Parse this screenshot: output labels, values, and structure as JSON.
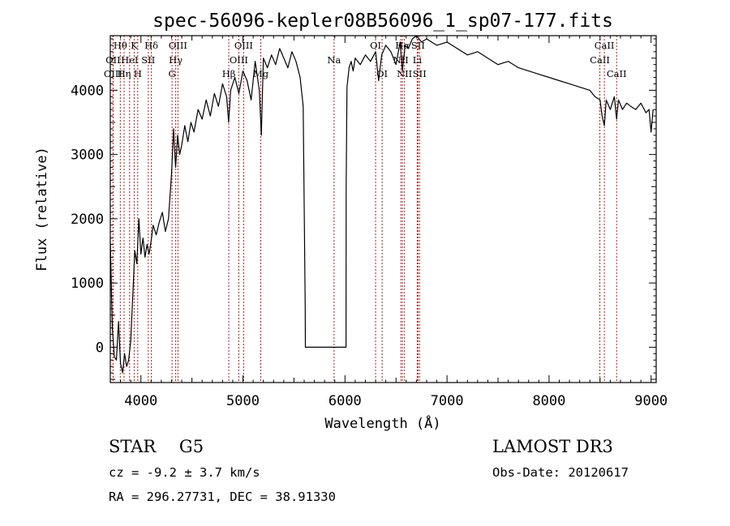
{
  "chart_data": {
    "type": "line",
    "title": "spec-56096-kepler08B56096_1_sp07-177.fits",
    "xlabel": "Wavelength (Å)",
    "ylabel": "Flux (relative)",
    "xlim": [
      3700,
      9050
    ],
    "ylim": [
      -550,
      4850
    ],
    "xticks": [
      4000,
      5000,
      6000,
      7000,
      8000,
      9000
    ],
    "yticks": [
      0,
      1000,
      2000,
      3000,
      4000
    ],
    "grid": false,
    "legend": "none",
    "line_color": "#000000",
    "marker_color": "#b22222",
    "series": [
      {
        "x": [
          3700,
          3720,
          3740,
          3760,
          3780,
          3800,
          3820,
          3840,
          3860,
          3880,
          3900,
          3920,
          3940,
          3960,
          3980,
          4000,
          4020,
          4040,
          4060,
          4080,
          4100,
          4120,
          4150,
          4180,
          4210,
          4240,
          4270,
          4300,
          4320,
          4340,
          4360,
          4380,
          4400,
          4430,
          4460,
          4490,
          4520,
          4560,
          4600,
          4640,
          4680,
          4720,
          4760,
          4800,
          4840,
          4860,
          4880,
          4920,
          4960,
          5000,
          5040,
          5080,
          5120,
          5160,
          5180,
          5200,
          5240,
          5280,
          5320,
          5360,
          5400,
          5440,
          5480,
          5520,
          5560,
          5590,
          5610,
          5612,
          5640,
          5700,
          5800,
          5900,
          6000,
          6010,
          6012,
          6020,
          6040,
          6060,
          6080,
          6100,
          6150,
          6200,
          6250,
          6300,
          6330,
          6360,
          6400,
          6450,
          6500,
          6540,
          6563,
          6590,
          6620,
          6660,
          6700,
          6750,
          6800,
          6900,
          7000,
          7100,
          7200,
          7300,
          7400,
          7500,
          7600,
          7700,
          7800,
          7900,
          8000,
          8100,
          8200,
          8300,
          8400,
          8450,
          8500,
          8520,
          8542,
          8560,
          8600,
          8640,
          8662,
          8680,
          8720,
          8760,
          8800,
          8850,
          8900,
          8950,
          8980,
          9000,
          9020
        ],
        "y": [
          1650,
          300,
          -150,
          -200,
          400,
          -250,
          -400,
          -100,
          -300,
          -200,
          100,
          800,
          1500,
          1300,
          2000,
          1450,
          1700,
          1400,
          1600,
          1450,
          1650,
          1900,
          1750,
          1950,
          2100,
          1800,
          2000,
          2700,
          3400,
          2800,
          3300,
          3000,
          3150,
          3450,
          3200,
          3500,
          3350,
          3700,
          3550,
          3850,
          3600,
          3950,
          3750,
          4100,
          3900,
          3500,
          4000,
          4200,
          3950,
          4300,
          4150,
          3850,
          4450,
          4000,
          3300,
          4500,
          4350,
          4550,
          4400,
          4650,
          4500,
          4350,
          4600,
          4450,
          4200,
          3750,
          600,
          0,
          0,
          0,
          0,
          0,
          0,
          0,
          2550,
          4050,
          4350,
          4450,
          4300,
          4500,
          4400,
          4550,
          4450,
          4600,
          4150,
          4550,
          4700,
          4600,
          4400,
          4750,
          4300,
          4700,
          4650,
          4800,
          4850,
          4750,
          4800,
          4700,
          4750,
          4650,
          4550,
          4600,
          4500,
          4400,
          4450,
          4350,
          4300,
          4250,
          4200,
          4150,
          4100,
          4050,
          4000,
          3900,
          3850,
          3600,
          3450,
          3850,
          3700,
          3900,
          3550,
          3850,
          3700,
          3800,
          3750,
          3700,
          3800,
          3650,
          3700,
          3350,
          3700
        ]
      }
    ],
    "lines": [
      {
        "name": "Hθ",
        "x": 3798,
        "row": 0
      },
      {
        "name": "OII",
        "x": 3727,
        "row": 1
      },
      {
        "name": "OIII",
        "x": 3727,
        "row": 2
      },
      {
        "name": "K",
        "x": 3934,
        "row": 0
      },
      {
        "name": "HeI",
        "x": 3889,
        "row": 1
      },
      {
        "name": "Hη",
        "x": 3835,
        "row": 2
      },
      {
        "name": "Hδ",
        "x": 4102,
        "row": 0
      },
      {
        "name": "SII",
        "x": 4072,
        "row": 1
      },
      {
        "name": "H",
        "x": 3969,
        "row": 2
      },
      {
        "name": "OIII",
        "x": 4363,
        "row": 0
      },
      {
        "name": "Hγ",
        "x": 4341,
        "row": 1
      },
      {
        "name": "G",
        "x": 4305,
        "row": 2
      },
      {
        "name": "OIII",
        "x": 5007,
        "row": 0
      },
      {
        "name": "OIII",
        "x": 4959,
        "row": 1
      },
      {
        "name": "Hβ",
        "x": 4861,
        "row": 2
      },
      {
        "name": "Mg",
        "x": 5175,
        "row": 2
      },
      {
        "name": "Na",
        "x": 5893,
        "row": 1
      },
      {
        "name": "OI",
        "x": 6300,
        "row": 0
      },
      {
        "name": "OI",
        "x": 6364,
        "row": 2
      },
      {
        "name": "Hα",
        "x": 6563,
        "row": 0
      },
      {
        "name": "SII",
        "x": 6716,
        "row": 0
      },
      {
        "name": "NII",
        "x": 6548,
        "row": 1
      },
      {
        "name": "Li",
        "x": 6708,
        "row": 1
      },
      {
        "name": "NII",
        "x": 6583,
        "row": 2
      },
      {
        "name": "SII",
        "x": 6731,
        "row": 2
      },
      {
        "name": "CaII",
        "x": 8542,
        "row": 0
      },
      {
        "name": "CaII",
        "x": 8498,
        "row": 1
      },
      {
        "name": "CaII",
        "x": 8662,
        "row": 2
      }
    ]
  },
  "info": {
    "class": "STAR",
    "subclass": "G5",
    "survey": "LAMOST DR3",
    "cz": "cz = -9.2 ± 3.7 km/s",
    "obs_date": "Obs-Date: 20120617",
    "coords": "RA = 296.27731, DEC =  38.91330"
  }
}
